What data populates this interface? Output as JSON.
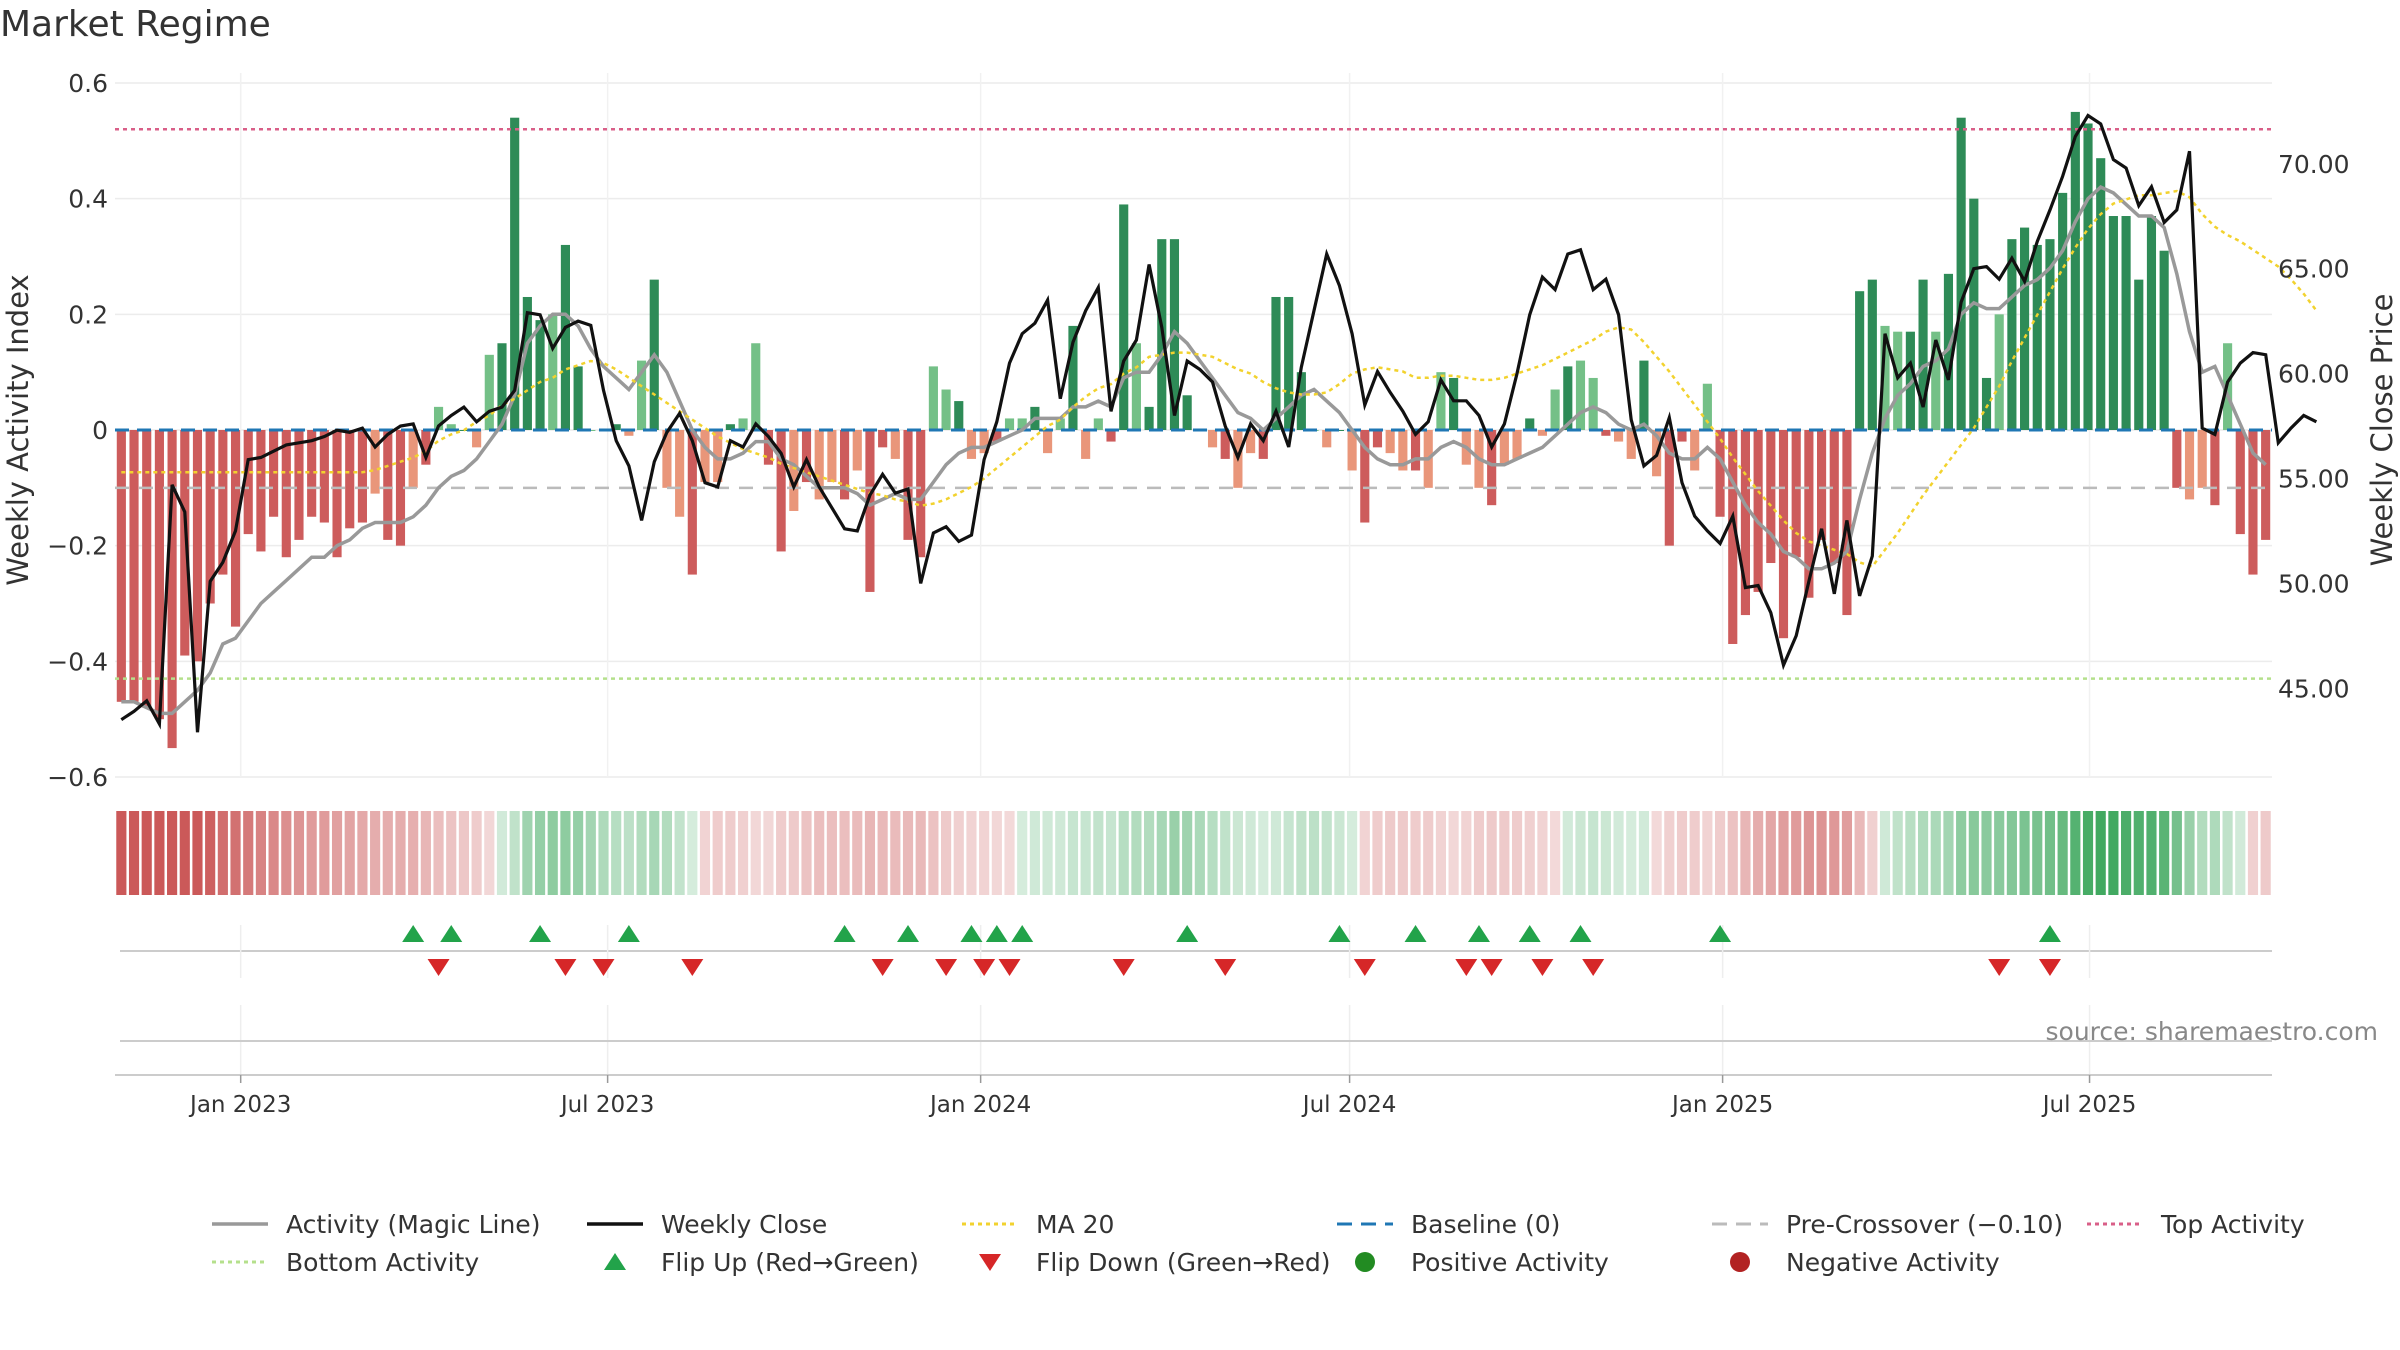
{
  "page_title": "Market Regime",
  "source_label": "source: sharemaestro.com",
  "chart_data": {
    "type": "bar",
    "title": "Market Regime",
    "ylabel": "Weekly Activity Index",
    "y2label": "Weekly Close Price",
    "ylim": [
      -0.6,
      0.6
    ],
    "y2lim": [
      40.77,
      73.85
    ],
    "yticks": [
      -0.6,
      -0.4,
      -0.2,
      0,
      0.2,
      0.4,
      0.6
    ],
    "yticklabels": [
      "−0.6",
      "−0.4",
      "−0.2",
      "0",
      "0.2",
      "0.4",
      "0.6"
    ],
    "y2ticks": [
      45,
      50,
      55,
      60,
      65,
      70
    ],
    "y2ticklabels": [
      "45.00",
      "50.00",
      "55.00",
      "60.00",
      "65.00",
      "70.00"
    ],
    "x_start": "2022-10-31",
    "x_end": "2025-09-29",
    "xticks": [
      "2023-01-01",
      "2023-07-01",
      "2024-01-01",
      "2024-07-01",
      "2025-01-01",
      "2025-07-01"
    ],
    "xticklabels": [
      "Jan 2023",
      "Jul 2023",
      "Jan 2024",
      "Jul 2024",
      "Jan 2025",
      "Jul 2025"
    ],
    "grid": true,
    "legend_position": "bottom",
    "reference_lines": {
      "baseline": 0,
      "pre_crossover": -0.1,
      "top_activity": 0.52,
      "bottom_activity": -0.43
    },
    "colors": {
      "pos_strong": "#2e8b57",
      "pos_light": "#74c087",
      "neg_strong": "#cd5c5c",
      "neg_light": "#e9967a",
      "magic_line": "#999999",
      "weekly_close": "#111111",
      "ma20": "#f2d22e",
      "baseline": "#1f77b4",
      "pre_crossover": "#bbbbbb",
      "top_activity": "#d95f88",
      "bottom_activity": "#b5e08c",
      "flip_up": "#22a34a",
      "flip_down": "#d62728",
      "positive_activity": "#228b22",
      "negative_activity": "#b22222"
    },
    "activity": [
      -0.47,
      -0.47,
      -0.48,
      -0.5,
      -0.55,
      -0.39,
      -0.4,
      -0.3,
      -0.25,
      -0.34,
      -0.18,
      -0.21,
      -0.15,
      -0.22,
      -0.19,
      -0.15,
      -0.16,
      -0.22,
      -0.17,
      -0.16,
      -0.11,
      -0.19,
      -0.2,
      -0.1,
      -0.06,
      0.04,
      0.01,
      0.0,
      -0.03,
      0.13,
      0.15,
      0.54,
      0.23,
      0.19,
      0.2,
      0.32,
      0.11,
      0.0,
      0.0,
      0.01,
      -0.01,
      0.12,
      0.26,
      -0.1,
      -0.15,
      -0.25,
      -0.09,
      -0.09,
      0.01,
      0.02,
      0.15,
      -0.06,
      -0.21,
      -0.14,
      -0.09,
      -0.12,
      -0.09,
      -0.12,
      -0.07,
      -0.28,
      -0.03,
      -0.05,
      -0.19,
      -0.22,
      0.11,
      0.07,
      0.05,
      -0.05,
      -0.04,
      -0.02,
      0.02,
      0.02,
      0.04,
      -0.04,
      0.02,
      0.18,
      -0.05,
      0.02,
      -0.02,
      0.39,
      0.15,
      0.04,
      0.33,
      0.33,
      0.06,
      0.0,
      -0.03,
      -0.05,
      -0.1,
      -0.04,
      -0.05,
      0.23,
      0.23,
      0.1,
      0.0,
      -0.03,
      0.0,
      -0.07,
      -0.16,
      -0.03,
      -0.04,
      -0.07,
      -0.07,
      -0.1,
      0.1,
      0.09,
      -0.06,
      -0.1,
      -0.13,
      -0.06,
      -0.05,
      0.02,
      -0.01,
      0.07,
      0.11,
      0.12,
      0.09,
      -0.01,
      -0.02,
      -0.05,
      0.12,
      -0.08,
      -0.2,
      -0.02,
      -0.07,
      0.08,
      -0.15,
      -0.37,
      -0.32,
      -0.28,
      -0.23,
      -0.36,
      -0.22,
      -0.29,
      -0.19,
      -0.23,
      -0.32,
      0.24,
      0.26,
      0.18,
      0.17,
      0.17,
      0.26,
      0.17,
      0.27,
      0.54,
      0.4,
      0.09,
      0.2,
      0.33,
      0.35,
      0.32,
      0.33,
      0.41,
      0.55,
      0.53,
      0.47,
      0.37,
      0.37,
      0.26,
      0.37,
      0.31,
      -0.1,
      -0.12,
      -0.1,
      -0.13,
      0.15,
      -0.18,
      -0.25,
      -0.19
    ],
    "weekly_close": [
      43.5,
      43.9,
      44.4,
      43.3,
      54.7,
      53.4,
      42.9,
      50.1,
      51.0,
      52.5,
      55.9,
      56.0,
      56.3,
      56.6,
      56.7,
      56.8,
      57.0,
      57.3,
      57.2,
      57.4,
      56.5,
      57.1,
      57.5,
      57.6,
      56.0,
      57.5,
      58.0,
      58.4,
      57.7,
      58.2,
      58.4,
      59.2,
      62.9,
      62.8,
      61.2,
      62.2,
      62.5,
      62.3,
      59.2,
      56.8,
      55.6,
      53.0,
      55.8,
      57.2,
      58.1,
      56.8,
      54.8,
      54.6,
      56.8,
      56.5,
      57.6,
      57.0,
      56.2,
      54.6,
      55.9,
      54.6,
      53.6,
      52.6,
      52.5,
      54.2,
      55.2,
      54.3,
      54.5,
      50.0,
      52.4,
      52.7,
      52.0,
      52.3,
      55.9,
      57.7,
      60.5,
      61.9,
      62.4,
      63.5,
      58.8,
      61.5,
      63.0,
      64.1,
      58.2,
      60.6,
      61.6,
      65.2,
      62.2,
      58.0,
      60.6,
      60.2,
      59.6,
      57.5,
      56.0,
      57.6,
      56.8,
      58.2,
      56.5,
      60.3,
      63.0,
      65.7,
      64.2,
      61.9,
      58.5,
      60.1,
      59.1,
      58.2,
      57.1,
      57.7,
      59.7,
      58.7,
      58.7,
      58.0,
      56.5,
      57.6,
      60.0,
      62.8,
      64.6,
      64.0,
      65.7,
      65.9,
      64.0,
      64.5,
      62.8,
      57.8,
      55.6,
      56.1,
      57.9,
      54.8,
      53.2,
      52.5,
      51.9,
      53.2,
      49.8,
      49.9,
      48.6,
      46.1,
      47.5,
      50.1,
      52.6,
      49.5,
      53.0,
      49.4,
      51.3,
      61.9,
      59.8,
      60.5,
      58.4,
      61.6,
      59.7,
      63.4,
      65.0,
      65.1,
      64.5,
      65.5,
      64.4,
      66.3,
      67.8,
      69.4,
      71.3,
      72.3,
      71.9,
      70.2,
      69.8,
      68.0,
      68.9,
      67.2,
      67.8,
      70.6,
      57.4,
      57.1,
      59.6,
      60.5,
      61.0,
      60.9,
      56.7,
      57.4,
      58.0,
      57.7
    ],
    "magic_line": [
      -0.47,
      -0.47,
      -0.48,
      -0.49,
      -0.49,
      -0.47,
      -0.45,
      -0.42,
      -0.37,
      -0.36,
      -0.33,
      -0.3,
      -0.28,
      -0.26,
      -0.24,
      -0.22,
      -0.22,
      -0.2,
      -0.19,
      -0.17,
      -0.16,
      -0.16,
      -0.16,
      -0.15,
      -0.13,
      -0.1,
      -0.08,
      -0.07,
      -0.05,
      -0.02,
      0.01,
      0.06,
      0.15,
      0.18,
      0.2,
      0.2,
      0.18,
      0.14,
      0.11,
      0.09,
      0.07,
      0.1,
      0.13,
      0.1,
      0.05,
      0.0,
      -0.03,
      -0.05,
      -0.05,
      -0.04,
      -0.02,
      -0.02,
      -0.05,
      -0.06,
      -0.08,
      -0.1,
      -0.1,
      -0.1,
      -0.11,
      -0.13,
      -0.12,
      -0.11,
      -0.12,
      -0.12,
      -0.09,
      -0.06,
      -0.04,
      -0.03,
      -0.03,
      -0.02,
      -0.01,
      0.0,
      0.02,
      0.02,
      0.02,
      0.04,
      0.04,
      0.05,
      0.04,
      0.09,
      0.1,
      0.1,
      0.13,
      0.17,
      0.15,
      0.12,
      0.09,
      0.06,
      0.03,
      0.02,
      0.0,
      0.02,
      0.04,
      0.06,
      0.07,
      0.05,
      0.03,
      0.0,
      -0.03,
      -0.05,
      -0.06,
      -0.06,
      -0.05,
      -0.05,
      -0.03,
      -0.02,
      -0.03,
      -0.05,
      -0.06,
      -0.06,
      -0.05,
      -0.04,
      -0.03,
      -0.01,
      0.01,
      0.03,
      0.04,
      0.03,
      0.01,
      0.0,
      0.01,
      -0.01,
      -0.04,
      -0.05,
      -0.05,
      -0.03,
      -0.05,
      -0.09,
      -0.13,
      -0.16,
      -0.18,
      -0.21,
      -0.22,
      -0.24,
      -0.24,
      -0.23,
      -0.21,
      -0.12,
      -0.04,
      0.02,
      0.06,
      0.08,
      0.11,
      0.12,
      0.14,
      0.2,
      0.22,
      0.21,
      0.21,
      0.23,
      0.25,
      0.26,
      0.28,
      0.31,
      0.36,
      0.4,
      0.42,
      0.41,
      0.39,
      0.37,
      0.37,
      0.35,
      0.27,
      0.17,
      0.1,
      0.11,
      0.06,
      0.01,
      -0.04,
      -0.06
    ],
    "ma20": [
      55.3,
      55.3,
      55.3,
      55.3,
      55.3,
      55.3,
      55.3,
      55.3,
      55.3,
      55.3,
      55.3,
      55.3,
      55.3,
      55.3,
      55.3,
      55.3,
      55.3,
      55.3,
      55.3,
      55.3,
      55.4,
      55.6,
      55.8,
      56.0,
      56.3,
      56.8,
      57.1,
      57.3,
      57.7,
      58.0,
      58.5,
      58.8,
      59.2,
      59.6,
      59.8,
      60.2,
      60.4,
      60.6,
      60.5,
      60.2,
      59.8,
      59.4,
      59.0,
      58.6,
      58.2,
      57.8,
      57.4,
      57.0,
      56.7,
      56.4,
      56.2,
      56.0,
      55.7,
      55.5,
      55.3,
      55.1,
      54.9,
      54.7,
      54.5,
      54.3,
      54.2,
      54.0,
      53.9,
      53.7,
      53.8,
      54.0,
      54.3,
      54.6,
      55.0,
      55.5,
      56.0,
      56.5,
      57.0,
      57.5,
      57.8,
      58.4,
      58.9,
      59.3,
      59.5,
      60.0,
      60.3,
      60.8,
      60.9,
      61.0,
      61.0,
      60.9,
      60.8,
      60.5,
      60.2,
      60.0,
      59.6,
      59.3,
      59.1,
      59.0,
      59.0,
      59.1,
      59.5,
      60.0,
      60.2,
      60.3,
      60.2,
      60.1,
      59.8,
      59.8,
      59.9,
      59.9,
      59.8,
      59.7,
      59.7,
      59.8,
      60.0,
      60.2,
      60.4,
      60.7,
      61.0,
      61.3,
      61.6,
      62.0,
      62.2,
      62.1,
      61.5,
      60.8,
      60.1,
      59.3,
      58.5,
      57.7,
      56.9,
      56.0,
      55.2,
      54.4,
      53.7,
      53.0,
      52.4,
      52.0,
      51.8,
      51.6,
      51.4,
      51.0,
      50.8,
      51.6,
      52.4,
      53.3,
      54.2,
      55.0,
      55.8,
      56.6,
      57.4,
      58.4,
      59.4,
      60.6,
      61.7,
      62.8,
      63.9,
      65.0,
      66.0,
      66.9,
      67.6,
      68.1,
      68.3,
      68.5,
      68.5,
      68.6,
      68.7,
      68.4,
      67.6,
      67.0,
      66.6,
      66.3,
      65.9,
      65.5,
      65.1,
      64.5,
      63.8,
      63.0
    ],
    "flip_up_weeks": [
      23,
      26,
      33,
      40,
      57,
      62,
      67,
      69,
      71,
      84,
      96,
      102,
      107,
      111,
      115,
      126,
      152
    ],
    "flip_down_weeks": [
      25,
      35,
      38,
      45,
      60,
      65,
      68,
      70,
      79,
      87,
      98,
      106,
      108,
      112,
      116,
      148,
      152
    ],
    "legend": [
      {
        "label": "Activity (Magic Line)",
        "style": "line",
        "color": "#999999"
      },
      {
        "label": "Weekly Close",
        "style": "line",
        "color": "#111111"
      },
      {
        "label": "MA 20",
        "style": "dotted",
        "color": "#f2d22e"
      },
      {
        "label": "Baseline (0)",
        "style": "dashed",
        "color": "#1f77b4"
      },
      {
        "label": "Pre-Crossover (−0.10)",
        "style": "dashed",
        "color": "#bbbbbb"
      },
      {
        "label": "Top Activity",
        "style": "dotted",
        "color": "#d95f88"
      },
      {
        "label": "Bottom Activity",
        "style": "dotted",
        "color": "#b5e08c"
      },
      {
        "label": "Flip Up (Red→Green)",
        "style": "triangle-up",
        "color": "#22a34a"
      },
      {
        "label": "Flip Down (Green→Red)",
        "style": "triangle-down",
        "color": "#d62728"
      },
      {
        "label": "Positive Activity",
        "style": "circle",
        "color": "#228b22"
      },
      {
        "label": "Negative Activity",
        "style": "circle",
        "color": "#b22222"
      }
    ]
  }
}
